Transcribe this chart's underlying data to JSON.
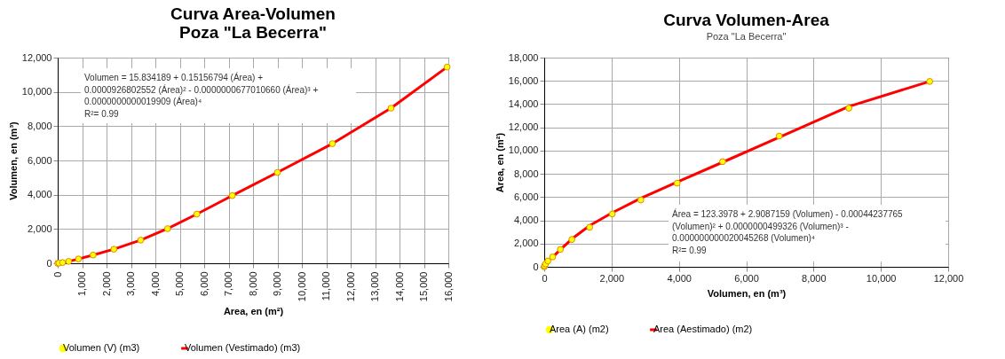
{
  "chart_data": [
    {
      "type": "line",
      "title": "Curva Area-Volumen\nPoza \"La Becerra\"",
      "xlabel": "Area, en (m²)",
      "ylabel": "Volumen, en (m³)",
      "xlim": [
        0,
        16000
      ],
      "xticks": [
        0,
        {
          "value": 1000,
          "label": "1,000"
        },
        {
          "value": 2000,
          "label": "2,000"
        },
        {
          "value": 3000,
          "label": "3,000"
        },
        {
          "value": 4000,
          "label": "4,000"
        },
        {
          "value": 5000,
          "label": "5,000"
        },
        {
          "value": 6000,
          "label": "6,000"
        },
        {
          "value": 7000,
          "label": "7,000"
        },
        {
          "value": 8000,
          "label": "8,000"
        },
        {
          "value": 9000,
          "label": "9,000"
        },
        {
          "value": 10000,
          "label": "10,000"
        },
        {
          "value": 11000,
          "label": "11,000"
        },
        {
          "value": 12000,
          "label": "12,000"
        },
        {
          "value": 13000,
          "label": "13,000"
        },
        {
          "value": 14000,
          "label": "14,000"
        },
        {
          "value": 15000,
          "label": "15,000"
        },
        {
          "value": 16000,
          "label": "16,000"
        }
      ],
      "ylim": [
        0,
        12000
      ],
      "yticks": [
        0,
        {
          "value": 2000,
          "label": "2,000"
        },
        {
          "value": 4000,
          "label": "4,000"
        },
        {
          "value": 6000,
          "label": "6,000"
        },
        {
          "value": 8000,
          "label": "8,000"
        },
        {
          "value": 10000,
          "label": "10,000"
        },
        {
          "value": 12000,
          "label": "12,000"
        }
      ],
      "grid": true,
      "legend": "bottom",
      "annotations": [
        "Volumen   =   15.834189   +   0.15156794   (Área)   +\n0.0000926802552 (Área)² - 0.0000000677010660 (Área)³ +\n0.0000000000019909 (Área)⁴\nR²= 0.99"
      ],
      "series": [
        {
          "name": "Volumen (V) (m3)",
          "type": "scatter",
          "marker": "circle",
          "color": "#ffff00",
          "x": [
            0,
            50,
            200,
            450,
            850,
            1450,
            2300,
            3400,
            4500,
            5700,
            7150,
            9000,
            11250,
            13650,
            15950
          ],
          "values": [
            0,
            10,
            40,
            110,
            250,
            480,
            820,
            1350,
            2020,
            2870,
            3950,
            5300,
            6980,
            9050,
            11450
          ]
        },
        {
          "name": "Volumen (Vestimado)  (m3)",
          "type": "line",
          "color": "#ff0000",
          "x": [
            200,
            450,
            850,
            1450,
            2300,
            3400,
            4500,
            5700,
            7150,
            9000,
            11250,
            13650,
            15950
          ],
          "values": [
            50,
            110,
            250,
            480,
            820,
            1350,
            2020,
            2870,
            3950,
            5300,
            6980,
            9050,
            11450
          ]
        }
      ]
    },
    {
      "type": "line",
      "title": "Curva Volumen-Area",
      "subtitle": "Poza \"La Becerra\"",
      "xlabel": "Volumen, en (m³)",
      "ylabel": "Area,  en (m²)",
      "xlim": [
        0,
        12000
      ],
      "xticks": [
        0,
        {
          "value": 2000,
          "label": "2,000"
        },
        {
          "value": 4000,
          "label": "4,000"
        },
        {
          "value": 6000,
          "label": "6,000"
        },
        {
          "value": 8000,
          "label": "8,000"
        },
        {
          "value": 10000,
          "label": "10,000"
        },
        {
          "value": 12000,
          "label": "12,000"
        }
      ],
      "ylim": [
        0,
        18000
      ],
      "yticks": [
        0,
        {
          "value": 2000,
          "label": "2,000"
        },
        {
          "value": 4000,
          "label": "4,000"
        },
        {
          "value": 6000,
          "label": "6,000"
        },
        {
          "value": 8000,
          "label": "8,000"
        },
        {
          "value": 10000,
          "label": "10,000"
        },
        {
          "value": 12000,
          "label": "12,000"
        },
        {
          "value": 14000,
          "label": "14,000"
        },
        {
          "value": 16000,
          "label": "16,000"
        },
        {
          "value": 18000,
          "label": "18,000"
        }
      ],
      "grid": true,
      "legend": "bottom",
      "annotations": [
        "Área = 123.3978 + 2.9087159 (Volumen) - 0.00044237765\n(Volumen)²      +      0.0000000499326       (Volumen)³      -\n0.000000000020045268 (Volumen)⁴\nR²= 0.99"
      ],
      "series": [
        {
          "name": "Area (A) (m2)",
          "type": "scatter",
          "marker": "circle",
          "color": "#ffff00",
          "x": [
            0,
            10,
            40,
            110,
            250,
            480,
            820,
            1350,
            2020,
            2870,
            3950,
            5300,
            6980,
            9050,
            11450
          ],
          "values": [
            0,
            100,
            250,
            500,
            850,
            1500,
            2350,
            3400,
            4550,
            5750,
            7200,
            9050,
            11250,
            13650,
            15950
          ]
        },
        {
          "name": "Area (Aestimado)  (m2)",
          "type": "line",
          "color": "#ff0000",
          "x": [
            250,
            480,
            820,
            1350,
            2020,
            2870,
            3950,
            5300,
            6980,
            9050,
            11450
          ],
          "values": [
            830,
            1480,
            2400,
            3550,
            4650,
            5900,
            7300,
            9000,
            11150,
            13800,
            15950
          ]
        }
      ]
    }
  ]
}
